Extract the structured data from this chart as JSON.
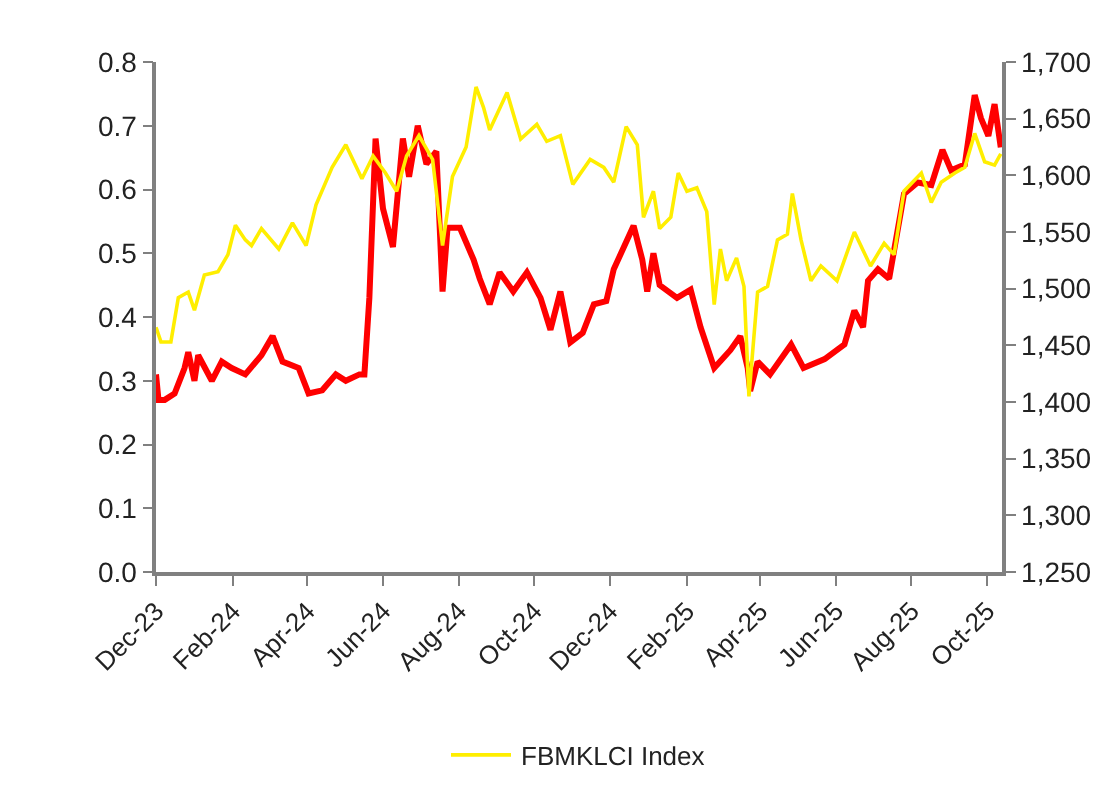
{
  "chart_data": {
    "type": "line",
    "legend": "bottom",
    "marker": "none",
    "line_style": "solid",
    "xlim": [
      "2023-12-01",
      "2025-10-13"
    ],
    "xticks": [
      {
        "value": "2023-12-01",
        "label": "Dec-23"
      },
      {
        "value": "2024-02-01",
        "label": "Feb-24"
      },
      {
        "value": "2024-04-01",
        "label": "Apr-24"
      },
      {
        "value": "2024-06-01",
        "label": "Jun-24"
      },
      {
        "value": "2024-08-01",
        "label": "Aug-24"
      },
      {
        "value": "2024-10-01",
        "label": "Oct-24"
      },
      {
        "value": "2024-12-01",
        "label": "Dec-24"
      },
      {
        "value": "2025-02-01",
        "label": "Feb-25"
      },
      {
        "value": "2025-04-01",
        "label": "Apr-25"
      },
      {
        "value": "2025-06-01",
        "label": "Jun-25"
      },
      {
        "value": "2025-08-01",
        "label": "Aug-25"
      },
      {
        "value": "2025-10-01",
        "label": "Oct-25"
      }
    ],
    "ylim": [
      0,
      0.8
    ],
    "yticks": [
      {
        "value": 0,
        "label": "0.0"
      },
      0.1,
      0.2,
      0.3,
      0.4,
      0.5,
      0.6,
      0.7,
      0.8
    ],
    "y2lim": [
      1250,
      1700
    ],
    "y2ticks": [
      {
        "value": 1250,
        "label": "1,250"
      },
      {
        "value": 1300,
        "label": "1,300"
      },
      {
        "value": 1350,
        "label": "1,350"
      },
      {
        "value": 1400,
        "label": "1,400"
      },
      {
        "value": 1450,
        "label": "1,450"
      },
      {
        "value": 1500,
        "label": "1,500"
      },
      {
        "value": 1550,
        "label": "1,550"
      },
      {
        "value": 1600,
        "label": "1,600"
      },
      {
        "value": 1650,
        "label": "1,650"
      },
      {
        "value": 1700,
        "label": "1,700"
      }
    ],
    "series": [
      {
        "color": "#ff0000",
        "x": [
          "2023-12-01",
          "2023-12-03",
          "2023-12-08",
          "2023-12-16",
          "2023-12-24",
          "2023-12-27",
          "2024-01-01",
          "2024-01-04",
          "2024-01-15",
          "2024-01-23",
          "2024-01-31",
          "2024-02-11",
          "2024-02-24",
          "2024-03-04",
          "2024-03-12",
          "2024-03-25",
          "2024-04-02",
          "2024-04-13",
          "2024-04-24",
          "2024-05-02",
          "2024-05-13",
          "2024-05-17",
          "2024-05-21",
          "2024-05-26",
          "2024-06-01",
          "2024-06-09",
          "2024-06-17",
          "2024-06-22",
          "2024-06-29",
          "2024-07-06",
          "2024-07-14",
          "2024-07-19",
          "2024-07-23",
          "2024-08-02",
          "2024-08-13",
          "2024-08-18",
          "2024-08-26",
          "2024-09-03",
          "2024-09-14",
          "2024-09-25",
          "2024-10-06",
          "2024-10-14",
          "2024-10-22",
          "2024-10-30",
          "2024-11-09",
          "2024-11-18",
          "2024-11-28",
          "2024-12-04",
          "2024-12-20",
          "2024-12-27",
          "2024-12-31",
          "2025-01-05",
          "2025-01-10",
          "2025-01-24",
          "2025-02-04",
          "2025-02-12",
          "2025-02-23",
          "2025-03-08",
          "2025-03-16",
          "2025-03-22",
          "2025-03-24",
          "2025-03-30",
          "2025-04-09",
          "2025-04-26",
          "2025-05-06",
          "2025-05-23",
          "2025-06-08",
          "2025-06-16",
          "2025-06-23",
          "2025-06-27",
          "2025-07-05",
          "2025-07-14",
          "2025-07-26",
          "2025-08-06",
          "2025-08-17",
          "2025-08-26",
          "2025-09-02",
          "2025-09-13",
          "2025-09-21",
          "2025-09-26",
          "2025-10-02",
          "2025-10-07",
          "2025-10-12"
        ],
        "values": [
          0.31,
          0.27,
          0.27,
          0.28,
          0.32,
          0.345,
          0.3,
          0.34,
          0.3,
          0.33,
          0.32,
          0.31,
          0.34,
          0.37,
          0.33,
          0.32,
          0.28,
          0.285,
          0.31,
          0.3,
          0.31,
          0.31,
          0.43,
          0.68,
          0.57,
          0.51,
          0.68,
          0.62,
          0.7,
          0.64,
          0.66,
          0.44,
          0.54,
          0.54,
          0.49,
          0.46,
          0.42,
          0.47,
          0.44,
          0.47,
          0.43,
          0.38,
          0.44,
          0.36,
          0.375,
          0.42,
          0.425,
          0.475,
          0.543,
          0.49,
          0.44,
          0.5,
          0.45,
          0.43,
          0.443,
          0.384,
          0.32,
          0.348,
          0.37,
          0.32,
          0.284,
          0.33,
          0.31,
          0.357,
          0.32,
          0.334,
          0.357,
          0.41,
          0.384,
          0.457,
          0.475,
          0.46,
          0.593,
          0.611,
          0.607,
          0.662,
          0.63,
          0.639,
          0.748,
          0.712,
          0.684,
          0.734,
          0.666
        ]
      },
      {
        "name": "FBMKLCI Index",
        "color": "#ffee00",
        "axis": "y2",
        "x": [
          "2023-12-01",
          "2023-12-05",
          "2023-12-13",
          "2023-12-19",
          "2023-12-27",
          "2024-01-01",
          "2024-01-09",
          "2024-01-20",
          "2024-01-28",
          "2024-02-03",
          "2024-02-11",
          "2024-02-16",
          "2024-02-24",
          "2024-03-09",
          "2024-03-20",
          "2024-03-31",
          "2024-04-08",
          "2024-04-21",
          "2024-05-02",
          "2024-05-15",
          "2024-05-24",
          "2024-06-03",
          "2024-06-12",
          "2024-06-20",
          "2024-06-30",
          "2024-07-11",
          "2024-07-19",
          "2024-07-27",
          "2024-08-07",
          "2024-08-15",
          "2024-08-21",
          "2024-08-26",
          "2024-09-09",
          "2024-09-20",
          "2024-10-03",
          "2024-10-11",
          "2024-10-22",
          "2024-11-01",
          "2024-11-15",
          "2024-11-26",
          "2024-12-04",
          "2024-12-14",
          "2024-12-23",
          "2024-12-28",
          "2025-01-05",
          "2025-01-10",
          "2025-01-19",
          "2025-01-25",
          "2025-02-01",
          "2025-02-09",
          "2025-02-17",
          "2025-02-23",
          "2025-02-28",
          "2025-03-05",
          "2025-03-13",
          "2025-03-19",
          "2025-03-23",
          "2025-03-30",
          "2025-04-07",
          "2025-04-15",
          "2025-04-23",
          "2025-04-27",
          "2025-05-04",
          "2025-05-12",
          "2025-05-20",
          "2025-06-02",
          "2025-06-16",
          "2025-06-29",
          "2025-07-10",
          "2025-07-18",
          "2025-07-26",
          "2025-08-09",
          "2025-08-17",
          "2025-08-25",
          "2025-09-05",
          "2025-09-13",
          "2025-09-21",
          "2025-09-29",
          "2025-10-07",
          "2025-10-12"
        ],
        "values": [
          1466,
          1453,
          1453,
          1492,
          1497,
          1481,
          1512,
          1515,
          1530,
          1556,
          1543,
          1538,
          1553,
          1535,
          1558,
          1538,
          1574,
          1607,
          1627,
          1597,
          1617,
          1602,
          1586,
          1617,
          1635,
          1614,
          1538,
          1599,
          1625,
          1678,
          1660,
          1640,
          1673,
          1632,
          1645,
          1630,
          1635,
          1592,
          1614,
          1607,
          1594,
          1643,
          1627,
          1563,
          1586,
          1553,
          1563,
          1602,
          1586,
          1589,
          1568,
          1486,
          1535,
          1507,
          1527,
          1502,
          1405,
          1497,
          1502,
          1543,
          1548,
          1584,
          1543,
          1507,
          1520,
          1507,
          1550,
          1520,
          1540,
          1530,
          1586,
          1602,
          1576,
          1594,
          1602,
          1607,
          1637,
          1612,
          1609,
          1619
        ]
      }
    ]
  }
}
